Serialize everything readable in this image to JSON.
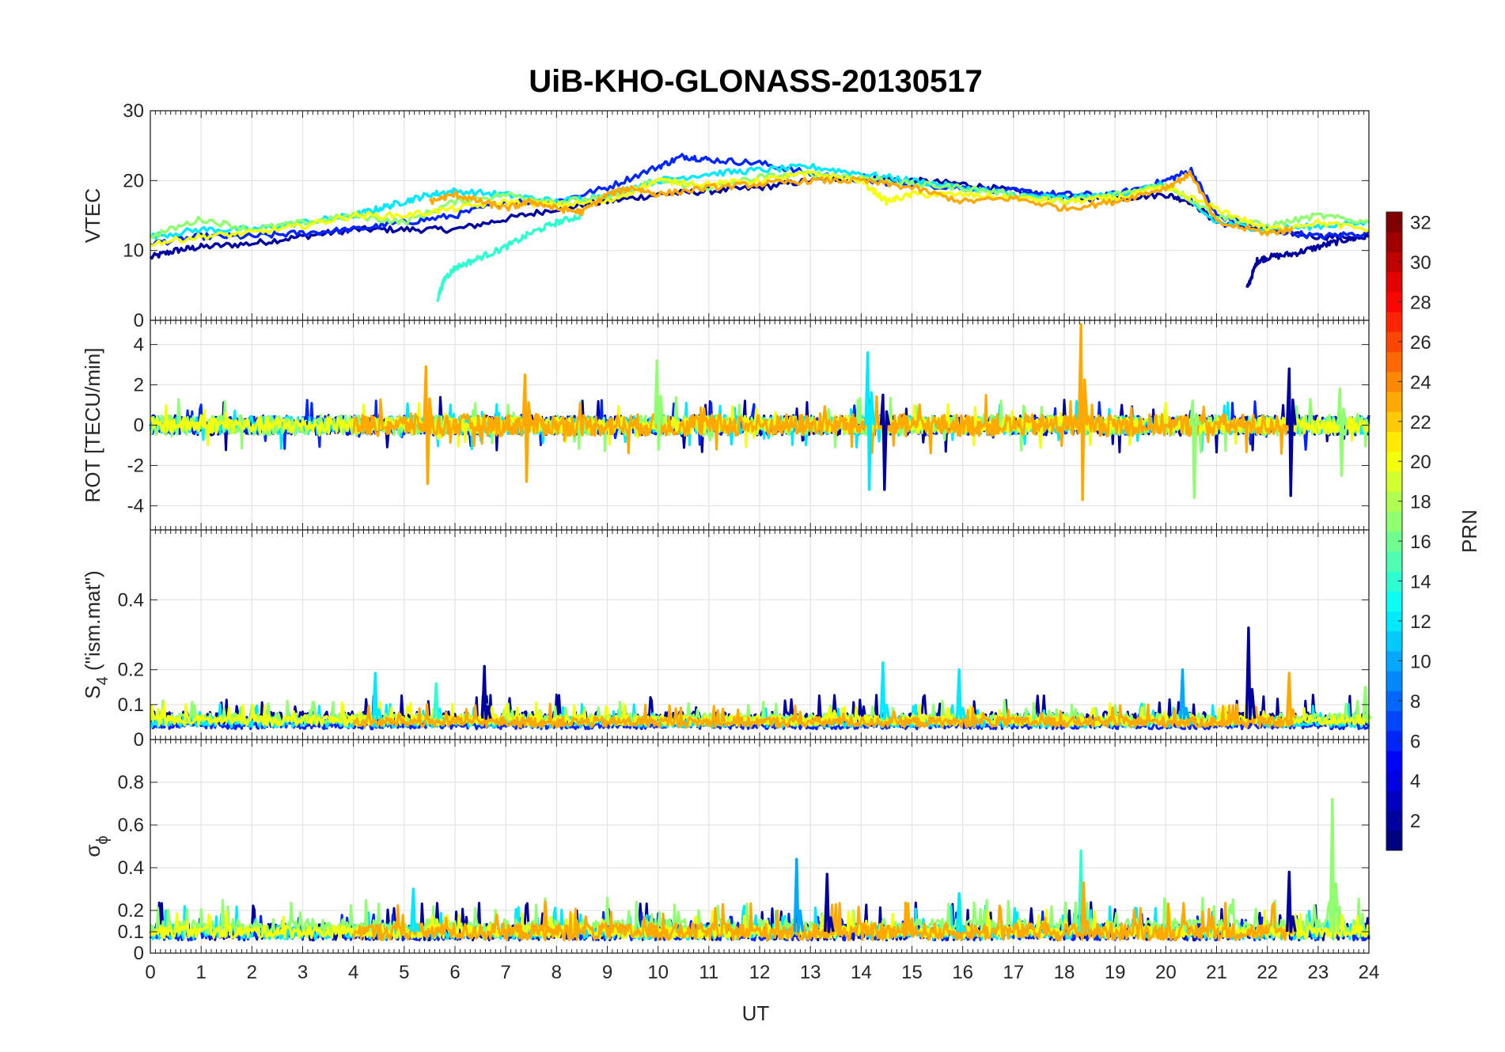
{
  "chart_data": {
    "type": "line",
    "title": "UiB-KHO-GLONASS-20130517",
    "xlabel": "UT",
    "x_ticks": [
      "0",
      "1",
      "2",
      "3",
      "4",
      "5",
      "6",
      "7",
      "8",
      "9",
      "10",
      "11",
      "12",
      "13",
      "14",
      "15",
      "16",
      "17",
      "18",
      "19",
      "20",
      "21",
      "22",
      "23",
      "24"
    ],
    "xlim": [
      0,
      24
    ],
    "grid": true,
    "panels": [
      {
        "ylabel": "VTEC",
        "ylim": [
          0,
          30
        ],
        "y_ticks": [
          0,
          10,
          20,
          30
        ],
        "y_tick_labels": [
          "0",
          "10",
          "20",
          "30"
        ],
        "series": [
          {
            "prn": 2,
            "x": [
              0,
              0.5,
              1,
              2,
              3,
              4,
              5,
              6,
              7,
              8,
              9,
              10,
              11,
              12,
              13,
              14,
              15,
              16,
              17,
              18,
              19,
              20,
              20.5,
              21,
              22,
              23,
              24
            ],
            "y": [
              9,
              10,
              10.5,
              11,
              12,
              13,
              13,
              13,
              14.5,
              16,
              17,
              18,
              18.5,
              19,
              20,
              20.5,
              20,
              19.5,
              18.5,
              17.5,
              17.5,
              18,
              17,
              14,
              13,
              12,
              12
            ]
          },
          {
            "prn": 2,
            "x": [
              21.6,
              21.8,
              22,
              22.5,
              23,
              23.5,
              24
            ],
            "y": [
              4.5,
              8.5,
              9,
              9.5,
              10.5,
              11.5,
              12
            ]
          },
          {
            "prn": 6,
            "x": [
              0,
              1,
              2,
              3,
              4,
              5,
              6,
              7,
              8,
              9,
              10,
              10.5,
              11,
              12,
              13,
              14,
              15,
              16,
              17,
              18,
              19,
              20,
              20.5,
              21,
              22,
              23,
              24
            ],
            "y": [
              11,
              12,
              12,
              12.5,
              13,
              14,
              15,
              17,
              17,
              19,
              22,
              23.5,
              23,
              22.5,
              21,
              20,
              19.5,
              19,
              18.5,
              18,
              18,
              20,
              21.5,
              15,
              13,
              12,
              12.5
            ]
          },
          {
            "prn": 12,
            "x": [
              0,
              1,
              2,
              3,
              4,
              4.5,
              5,
              5.5,
              6,
              7,
              8,
              9,
              10,
              11,
              12,
              13,
              14,
              15,
              16,
              17,
              18,
              19,
              20,
              21,
              22,
              23,
              24
            ],
            "y": [
              12,
              13,
              13,
              14,
              15,
              16,
              17,
              18,
              18.5,
              18,
              17,
              18,
              20,
              21,
              21.5,
              22,
              21,
              20,
              19,
              18,
              17.5,
              18,
              19.5,
              14,
              13,
              13.5,
              14
            ]
          },
          {
            "prn": 14,
            "x": [
              5.65,
              5.8,
              6,
              6.5,
              7,
              7.5,
              8,
              8.5
            ],
            "y": [
              3,
              6,
              7.5,
              9,
              10.5,
              12.5,
              14,
              15
            ]
          },
          {
            "prn": 17,
            "x": [
              0,
              1,
              2,
              3,
              4,
              5,
              6,
              7,
              8,
              9,
              10,
              11,
              12,
              13,
              14,
              15,
              16,
              17,
              18,
              19,
              20,
              21,
              22,
              23,
              24
            ],
            "y": [
              12,
              14.5,
              13,
              14,
              15,
              14,
              17,
              18,
              17,
              17.5,
              20,
              19,
              20.5,
              21,
              20.5,
              19.5,
              19,
              18,
              17,
              18,
              19.5,
              15,
              13.5,
              15,
              14
            ]
          },
          {
            "prn": 20,
            "x": [
              0,
              1,
              2,
              3,
              4,
              5,
              6,
              7,
              8,
              9,
              10,
              11,
              12,
              13,
              14,
              14.5,
              15,
              16,
              17,
              18,
              19,
              20,
              21,
              22,
              23,
              24
            ],
            "y": [
              11,
              12,
              12.5,
              13.5,
              15,
              15,
              16,
              17,
              16.5,
              17,
              20,
              19.5,
              20,
              21,
              20,
              17,
              18,
              18,
              17.5,
              17,
              17.5,
              19,
              16,
              13,
              14,
              13
            ]
          },
          {
            "prn": 23,
            "x": [
              5.5,
              6,
              6.5,
              7,
              7.5,
              8,
              8.5,
              9,
              9.5,
              10,
              11,
              12,
              13,
              14,
              15,
              16,
              17,
              18,
              19,
              20,
              20.5,
              21,
              22,
              22.5
            ],
            "y": [
              17,
              18,
              17,
              16,
              17,
              16,
              15.5,
              18,
              19,
              18,
              19,
              19.5,
              20,
              20,
              19,
              17,
              17.5,
              16,
              17,
              19,
              21,
              14,
              12.5,
              13
            ]
          }
        ]
      },
      {
        "ylabel": "ROT [TECU/min]",
        "ylim": [
          -5.2,
          5.2
        ],
        "y_ticks": [
          -4,
          -2,
          0,
          2,
          4
        ],
        "y_tick_labels": [
          "-4",
          "-2",
          "0",
          "2",
          "4"
        ],
        "noise_segments": [
          {
            "prn": 2,
            "x_start": 0,
            "x_end": 24,
            "amplitude": 0.5
          },
          {
            "prn": 6,
            "x_start": 0,
            "x_end": 24,
            "amplitude": 0.45
          },
          {
            "prn": 12,
            "x_start": 0,
            "x_end": 24,
            "amplitude": 0.45
          },
          {
            "prn": 17,
            "x_start": 0,
            "x_end": 24,
            "amplitude": 0.5
          },
          {
            "prn": 20,
            "x_start": 0,
            "x_end": 24,
            "amplitude": 0.4
          },
          {
            "prn": 23,
            "x_start": 4,
            "x_end": 22.5,
            "amplitude": 0.55
          }
        ],
        "spikes": [
          {
            "prn": 23,
            "x": 18.35,
            "y_max": 5.0,
            "y_min": -3.7
          },
          {
            "prn": 12,
            "x": 14.15,
            "y_max": 3.6,
            "y_min": -3.2
          },
          {
            "prn": 2,
            "x": 22.45,
            "y_max": 2.8,
            "y_min": -3.5
          },
          {
            "prn": 23,
            "x": 5.45,
            "y_max": 2.9,
            "y_min": -2.9
          },
          {
            "prn": 17,
            "x": 10.0,
            "y_max": 3.2,
            "y_min": -1.2
          },
          {
            "prn": 17,
            "x": 20.55,
            "y_max": 1.2,
            "y_min": -3.6
          },
          {
            "prn": 2,
            "x": 14.45,
            "y_max": 1.5,
            "y_min": -3.2
          },
          {
            "prn": 23,
            "x": 7.4,
            "y_max": 2.5,
            "y_min": -2.8
          },
          {
            "prn": 17,
            "x": 23.45,
            "y_max": 1.8,
            "y_min": -2.5
          }
        ]
      },
      {
        "ylabel": "S",
        "ylabel_subscript": "4",
        "ylabel_suffix": " (\"ism.mat\")",
        "ylim": [
          0,
          0.6
        ],
        "y_ticks": [
          0,
          0.1,
          0.2,
          0.4
        ],
        "y_tick_labels": [
          "0",
          "0.1",
          "0.2",
          "0.4"
        ],
        "baseline_segments": [
          {
            "prn": 2,
            "x_start": 0,
            "x_end": 24,
            "level": 0.06,
            "amplitude": 0.02
          },
          {
            "prn": 6,
            "x_start": 0,
            "x_end": 24,
            "level": 0.04,
            "amplitude": 0.01
          },
          {
            "prn": 12,
            "x_start": 0,
            "x_end": 24,
            "level": 0.05,
            "amplitude": 0.015
          },
          {
            "prn": 17,
            "x_start": 0,
            "x_end": 24,
            "level": 0.06,
            "amplitude": 0.015
          },
          {
            "prn": 20,
            "x_start": 0,
            "x_end": 24,
            "level": 0.055,
            "amplitude": 0.015
          },
          {
            "prn": 23,
            "x_start": 4,
            "x_end": 22.5,
            "level": 0.05,
            "amplitude": 0.015
          }
        ],
        "spikes": [
          {
            "prn": 2,
            "x": 21.65,
            "y_max": 0.32
          },
          {
            "prn": 12,
            "x": 14.45,
            "y_max": 0.22
          },
          {
            "prn": 2,
            "x": 6.6,
            "y_max": 0.21
          },
          {
            "prn": 12,
            "x": 4.45,
            "y_max": 0.19
          },
          {
            "prn": 12,
            "x": 15.95,
            "y_max": 0.2
          },
          {
            "prn": 10,
            "x": 20.35,
            "y_max": 0.2
          },
          {
            "prn": 23,
            "x": 22.45,
            "y_max": 0.19
          },
          {
            "prn": 14,
            "x": 5.65,
            "y_max": 0.16
          },
          {
            "prn": 17,
            "x": 23.95,
            "y_max": 0.15
          }
        ]
      },
      {
        "ylabel": "σ",
        "ylabel_subscript": "ϕ",
        "ylim": [
          0,
          1
        ],
        "y_ticks": [
          0,
          0.1,
          0.2,
          0.4,
          0.6,
          0.8
        ],
        "y_tick_labels": [
          "0",
          "0.1",
          "0.2",
          "0.4",
          "0.6",
          "0.8"
        ],
        "baseline_segments": [
          {
            "prn": 2,
            "x_start": 0,
            "x_end": 24,
            "level": 0.1,
            "amplitude": 0.04
          },
          {
            "prn": 6,
            "x_start": 0,
            "x_end": 24,
            "level": 0.09,
            "amplitude": 0.03
          },
          {
            "prn": 12,
            "x_start": 0,
            "x_end": 24,
            "level": 0.1,
            "amplitude": 0.035
          },
          {
            "prn": 17,
            "x_start": 0,
            "x_end": 24,
            "level": 0.12,
            "amplitude": 0.04
          },
          {
            "prn": 20,
            "x_start": 0,
            "x_end": 24,
            "level": 0.1,
            "amplitude": 0.03
          },
          {
            "prn": 23,
            "x_start": 4,
            "x_end": 22.5,
            "level": 0.1,
            "amplitude": 0.04
          }
        ],
        "spikes": [
          {
            "prn": 17,
            "x": 23.3,
            "y_max": 0.72
          },
          {
            "prn": 14,
            "x": 18.35,
            "y_max": 0.48
          },
          {
            "prn": 10,
            "x": 12.75,
            "y_max": 0.44
          },
          {
            "prn": 2,
            "x": 13.35,
            "y_max": 0.37
          },
          {
            "prn": 2,
            "x": 22.45,
            "y_max": 0.38
          },
          {
            "prn": 23,
            "x": 18.4,
            "y_max": 0.33
          },
          {
            "prn": 12,
            "x": 5.2,
            "y_max": 0.3
          },
          {
            "prn": 12,
            "x": 15.95,
            "y_max": 0.28
          },
          {
            "prn": 23,
            "x": 7.8,
            "y_max": 0.24
          }
        ]
      }
    ],
    "colorbar": {
      "label": "PRN",
      "range": [
        1,
        32
      ],
      "ticks": [
        "2",
        "4",
        "6",
        "8",
        "10",
        "12",
        "14",
        "16",
        "18",
        "20",
        "22",
        "24",
        "26",
        "28",
        "30",
        "32"
      ],
      "colormap": "jet",
      "placement": "right"
    }
  }
}
